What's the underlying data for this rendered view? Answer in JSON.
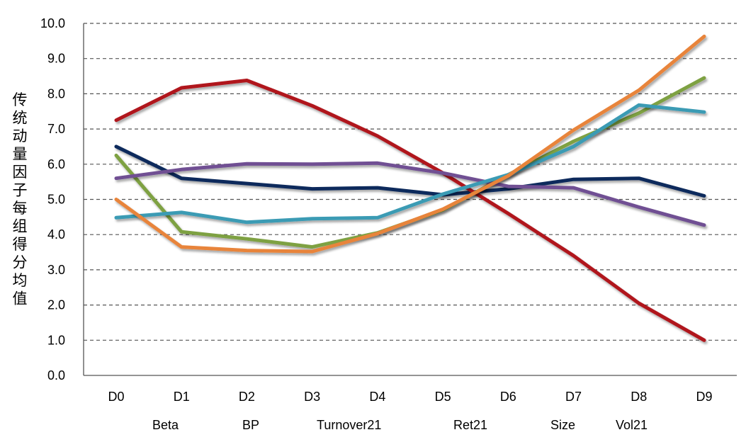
{
  "chart_data": {
    "type": "line",
    "title": "",
    "xlabel": "",
    "ylabel": "传统动量因子每组得分均值",
    "categories": [
      "D0",
      "D1",
      "D2",
      "D3",
      "D4",
      "D5",
      "D6",
      "D7",
      "D8",
      "D9"
    ],
    "ylim": [
      0,
      10
    ],
    "yticks": [
      "0.0",
      "1.0",
      "2.0",
      "3.0",
      "4.0",
      "5.0",
      "6.0",
      "7.0",
      "8.0",
      "9.0",
      "10.0"
    ],
    "grid": "horizontal dashed",
    "legend_position": "bottom",
    "series": [
      {
        "name": "Beta",
        "color": "#0d2a5c",
        "values": [
          6.5,
          5.6,
          5.45,
          5.3,
          5.33,
          5.13,
          5.3,
          5.57,
          5.6,
          5.1
        ]
      },
      {
        "name": "BP",
        "color": "#b0121b",
        "values": [
          7.25,
          8.17,
          8.38,
          7.66,
          6.8,
          5.75,
          4.6,
          3.4,
          2.05,
          1.0
        ]
      },
      {
        "name": "Turnover21",
        "color": "#7ea142",
        "values": [
          6.25,
          4.08,
          3.88,
          3.65,
          4.05,
          4.7,
          5.7,
          6.65,
          7.45,
          8.45
        ]
      },
      {
        "name": "Ret21",
        "color": "#6f5093",
        "values": [
          5.6,
          5.85,
          6.01,
          6.0,
          6.03,
          5.75,
          5.37,
          5.33,
          4.78,
          4.27
        ]
      },
      {
        "name": "Size",
        "color": "#3a9bb4",
        "values": [
          4.48,
          4.63,
          4.35,
          4.45,
          4.48,
          5.15,
          5.7,
          6.5,
          7.68,
          7.48
        ]
      },
      {
        "name": "Vol21",
        "color": "#e8843a",
        "values": [
          5.0,
          3.65,
          3.55,
          3.52,
          4.03,
          4.72,
          5.67,
          6.97,
          8.1,
          9.63
        ]
      }
    ]
  }
}
